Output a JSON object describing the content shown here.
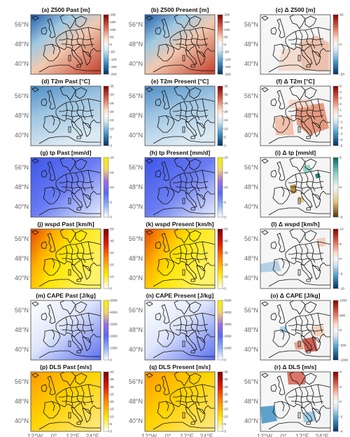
{
  "figure": {
    "lat_labels": [
      "56°N",
      "48°N",
      "40°N"
    ],
    "lon_labels": [
      "12°W",
      "0°",
      "12°E",
      "24°E"
    ]
  },
  "colors": {
    "ocean_land_bg": "#f7f7f7",
    "coast_line": "#111111",
    "frame": "#444444",
    "axis_text": "#666666"
  },
  "rows": [
    {
      "panels": [
        {
          "title": "(a) Z500 Past [m]",
          "cmap": "diverging_rb",
          "ticks": [
            "200",
            "150",
            "100",
            "50",
            "0",
            "-50",
            "-100",
            "-150",
            "-200"
          ],
          "field": "z500"
        },
        {
          "title": "(b) Z500 Present [m]",
          "cmap": "diverging_rb",
          "ticks": [
            "200",
            "150",
            "100",
            "50",
            "0",
            "-50",
            "-100",
            "-150",
            "-200"
          ],
          "field": "z500"
        },
        {
          "title": "(c) Δ Z500 [m]",
          "cmap": "diverging_rb",
          "ticks": [
            "50",
            "0",
            "-50"
          ],
          "field": "dz500"
        }
      ]
    },
    {
      "panels": [
        {
          "title": "(d) T2m Past [°C]",
          "cmap": "diverging_rb",
          "ticks": [
            "35",
            "30",
            "25",
            "20",
            "15",
            "10",
            "5",
            "0"
          ],
          "field": "t2m"
        },
        {
          "title": "(e) T2m Present [°C]",
          "cmap": "diverging_rb",
          "ticks": [
            "35",
            "30",
            "25",
            "20",
            "15",
            "10",
            "5",
            "0"
          ],
          "field": "t2m"
        },
        {
          "title": "(f) Δ T2m [°C]",
          "cmap": "diverging_rb",
          "ticks": [
            "5",
            "4",
            "3",
            "2",
            "1",
            "0",
            "-1",
            "-2",
            "-3",
            "-4",
            "-5"
          ],
          "field": "dt2m"
        }
      ]
    },
    {
      "panels": [
        {
          "title": "(g) tp Past [mm/d]",
          "cmap": "precip",
          "ticks": [
            "20",
            "15",
            "10",
            "5",
            "0"
          ],
          "field": "tp"
        },
        {
          "title": "(h) tp Present [mm/d]",
          "cmap": "precip",
          "ticks": [
            "20",
            "15",
            "10",
            "5",
            "0"
          ],
          "field": "tp"
        },
        {
          "title": "(i) Δ tp [mm/d]",
          "cmap": "brbg",
          "ticks": [
            "5",
            "0",
            "-5"
          ],
          "field": "dtp"
        }
      ]
    },
    {
      "panels": [
        {
          "title": "(j) wspd Past [km/h]",
          "cmap": "hot",
          "ticks": [
            "50",
            "40",
            "30",
            "20",
            "10",
            "0"
          ],
          "field": "wspd"
        },
        {
          "title": "(k) wspd Present [km/h]",
          "cmap": "hot",
          "ticks": [
            "50",
            "40",
            "30",
            "20",
            "10",
            "0"
          ],
          "field": "wspd"
        },
        {
          "title": "(l) Δ wspd [km/h]",
          "cmap": "diverging_rb",
          "ticks": [
            "10",
            "5",
            "0",
            "-5",
            "-10"
          ],
          "field": "dwspd"
        }
      ]
    },
    {
      "panels": [
        {
          "title": "(m) CAPE Past [J/kg]",
          "cmap": "precip",
          "ticks": [
            "5000",
            "4000",
            "3000",
            "2000",
            "1000",
            "0"
          ],
          "field": "cape"
        },
        {
          "title": "(n) CAPE Present [J/kg]",
          "cmap": "precip",
          "ticks": [
            "5000",
            "4000",
            "3000",
            "2000",
            "1000",
            "0"
          ],
          "field": "cape"
        },
        {
          "title": "(o) Δ CAPE [J/kg]",
          "cmap": "diverging_rb",
          "ticks": [
            "1000",
            "500",
            "0",
            "-500",
            "-1000"
          ],
          "field": "dcape"
        }
      ]
    },
    {
      "panels": [
        {
          "title": "(p) DLS Past [m/s]",
          "cmap": "hot",
          "ticks": [
            "40",
            "35",
            "30",
            "25",
            "20",
            "15",
            "10",
            "5",
            "0"
          ],
          "field": "dls"
        },
        {
          "title": "(q) DLS Present [m/s]",
          "cmap": "hot",
          "ticks": [
            "40",
            "35",
            "30",
            "25",
            "20",
            "15",
            "10",
            "5",
            "0"
          ],
          "field": "dls"
        },
        {
          "title": "(r) Δ DLS [m/s]",
          "cmap": "diverging_rb",
          "ticks": [
            "4",
            "2",
            "0",
            "-2",
            "-4"
          ],
          "field": "ddls"
        }
      ]
    }
  ]
}
